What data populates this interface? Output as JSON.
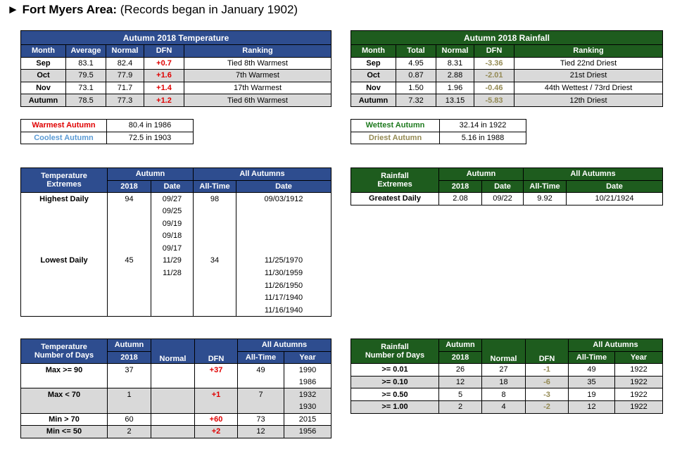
{
  "header": {
    "arrow": "►",
    "area": "Fort Myers Area:",
    "note": "(Records began in January 1902)"
  },
  "colors": {
    "temp_header": "#2e4d8f",
    "rain_header": "#1e5c1e",
    "dfn_positive": "#e00000",
    "dfn_negative": "#948a54",
    "warmest": "#e00000",
    "coolest": "#5b9bd5",
    "wettest": "#1e7a1e",
    "driest": "#948a54"
  },
  "temp_table": {
    "title": "Autumn 2018 Temperature",
    "headers": [
      "Month",
      "Average",
      "Normal",
      "DFN",
      "Ranking"
    ],
    "rows": [
      [
        "Sep",
        "83.1",
        "82.4",
        "+0.7",
        "Tied 8th Warmest"
      ],
      [
        "Oct",
        "79.5",
        "77.9",
        "+1.6",
        "7th Warmest"
      ],
      [
        "Nov",
        "73.1",
        "71.7",
        "+1.4",
        "17th Warmest"
      ],
      [
        "Autumn",
        "78.5",
        "77.3",
        "+1.2",
        "Tied 6th Warmest"
      ]
    ]
  },
  "rain_table": {
    "title": "Autumn 2018 Rainfall",
    "headers": [
      "Month",
      "Total",
      "Normal",
      "DFN",
      "Ranking"
    ],
    "rows": [
      [
        "Sep",
        "4.95",
        "8.31",
        "-3.36",
        "Tied 22nd Driest"
      ],
      [
        "Oct",
        "0.87",
        "2.88",
        "-2.01",
        "21st Driest"
      ],
      [
        "Nov",
        "1.50",
        "1.96",
        "-0.46",
        "44th Wettest / 73rd Driest"
      ],
      [
        "Autumn",
        "7.32",
        "13.15",
        "-5.83",
        "12th Driest"
      ]
    ]
  },
  "temp_records": [
    [
      "Warmest Autumn",
      "80.4 in 1986"
    ],
    [
      "Coolest Autumn",
      "72.5 in 1903"
    ]
  ],
  "rain_records": [
    [
      "Wettest Autumn",
      "32.14 in 1922"
    ],
    [
      "Driest Autumn",
      "5.16 in 1988"
    ]
  ],
  "temp_extremes": {
    "head1": [
      "Temperature",
      "Autumn",
      "All Autumns"
    ],
    "head2": [
      "Extremes",
      "2018",
      "Date",
      "All-Time",
      "Date"
    ],
    "highest_label": "Highest Daily",
    "highest_value": "94",
    "highest_dates": [
      "09/27",
      "09/25",
      "09/19",
      "09/18",
      "09/17"
    ],
    "highest_alltime": "98",
    "highest_alltime_dates": [
      "09/03/1912"
    ],
    "lowest_label": "Lowest Daily",
    "lowest_value": "45",
    "lowest_dates": [
      "11/29",
      "11/28"
    ],
    "lowest_alltime": "34",
    "lowest_alltime_dates": [
      "11/25/1970",
      "11/30/1959",
      "11/26/1950",
      "11/17/1940",
      "11/16/1940"
    ]
  },
  "rain_extremes": {
    "head1": [
      "Rainfall",
      "Autumn",
      "All Autumns"
    ],
    "head2": [
      "Extremes",
      "2018",
      "Date",
      "All-Time",
      "Date"
    ],
    "row": [
      "Greatest Daily",
      "2.08",
      "09/22",
      "9.92",
      "10/21/1924"
    ]
  },
  "temp_days": {
    "head1": [
      "Temperature",
      "Autumn",
      "All Autumns"
    ],
    "head2": [
      "Number of Days",
      "2018",
      "Normal",
      "DFN",
      "All-Time",
      "Year"
    ],
    "rows": [
      {
        "label": "Max >= 90",
        "val": "37",
        "normal": "",
        "dfn": "+37",
        "alltime": "49",
        "years": [
          "1990",
          "1986"
        ]
      },
      {
        "label": "Max < 70",
        "val": "1",
        "normal": "",
        "dfn": "+1",
        "alltime": "7",
        "years": [
          "1932",
          "1930"
        ]
      },
      {
        "label": "Min > 70",
        "val": "60",
        "normal": "",
        "dfn": "+60",
        "alltime": "73",
        "years": [
          "2015"
        ]
      },
      {
        "label": "Min <= 50",
        "val": "2",
        "normal": "",
        "dfn": "+2",
        "alltime": "12",
        "years": [
          "1956"
        ]
      }
    ]
  },
  "rain_days": {
    "head1": [
      "Rainfall",
      "Autumn",
      "All Autumns"
    ],
    "head2": [
      "Number of Days",
      "2018",
      "Normal",
      "DFN",
      "All-Time",
      "Year"
    ],
    "rows": [
      [
        ">= 0.01",
        "26",
        "27",
        "-1",
        "49",
        "1922"
      ],
      [
        ">= 0.10",
        "12",
        "18",
        "-6",
        "35",
        "1922"
      ],
      [
        ">= 0.50",
        "5",
        "8",
        "-3",
        "19",
        "1922"
      ],
      [
        ">= 1.00",
        "2",
        "4",
        "-2",
        "12",
        "1922"
      ]
    ]
  }
}
